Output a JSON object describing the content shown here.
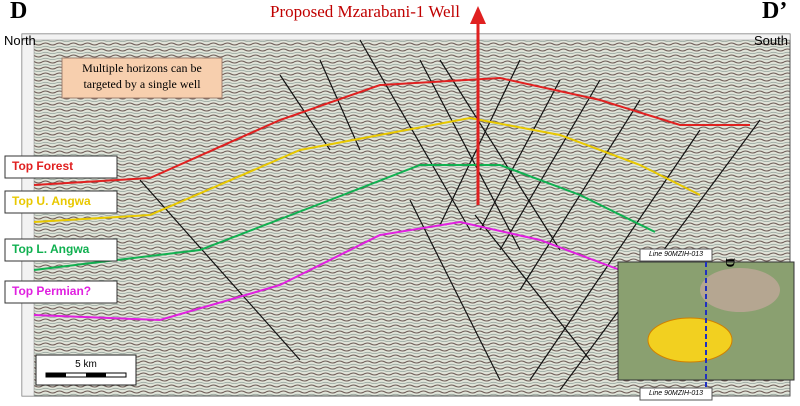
{
  "header": {
    "left_marker": "D",
    "left_direction": "North",
    "right_marker": "D’",
    "right_direction": "South",
    "title": "Proposed Mzarabani-1 Well"
  },
  "callout": {
    "line1": "Multiple horizons can be",
    "line2": "targeted by a single well"
  },
  "horizons": [
    {
      "label": "Top Forest",
      "color": "#e02020"
    },
    {
      "label": "Top U. Angwa",
      "color": "#e8c800"
    },
    {
      "label": "Top L. Angwa",
      "color": "#10b050"
    },
    {
      "label": "Top Permian?",
      "color": "#e020e0"
    }
  ],
  "scale_bar": {
    "label": "5 km"
  },
  "inset": {
    "top_label": "Line 90MZIH-013",
    "bottom_label": "Line 90MZIH-013",
    "marker": "D"
  }
}
